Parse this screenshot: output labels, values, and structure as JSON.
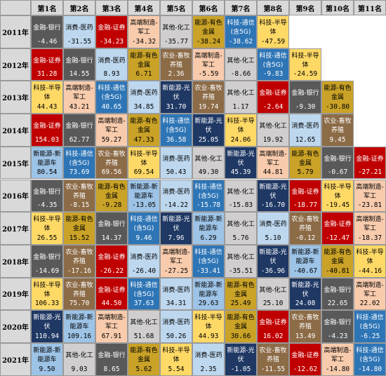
{
  "corner": "",
  "ranks": [
    "第1名",
    "第2名",
    "第3名",
    "第4名",
    "第5名",
    "第6名",
    "第7名",
    "第8名",
    "第9名",
    "第10名",
    "第11名"
  ],
  "sector_colors": {
    "金融-银行": {
      "bg": "#595959",
      "fg": "#ffffff"
    },
    "金融-证券": {
      "bg": "#c00000",
      "fg": "#ffffff"
    },
    "消费-医药": {
      "bg": "#bdd7ee",
      "fg": "#000000"
    },
    "高端制造-军工": {
      "bg": "#f8cbad",
      "fg": "#000000"
    },
    "其他-化工": {
      "bg": "#d0cece",
      "fg": "#000000"
    },
    "能源-有色金属": {
      "bg": "#c9a227",
      "fg": "#000000"
    },
    "科技-通信(含5G)": {
      "bg": "#2e75b6",
      "fg": "#ffffff"
    },
    "科技-半导体": {
      "bg": "#ffd966",
      "fg": "#000000"
    },
    "农业-畜牧养殖": {
      "bg": "#8c6b47",
      "fg": "#ffffff"
    },
    "新能源-光伏": {
      "bg": "#1f3864",
      "fg": "#ffffff"
    },
    "新能源-新能源车": {
      "bg": "#9dc3e6",
      "fg": "#000000"
    }
  },
  "rows": [
    {
      "year": "2011年",
      "cells": [
        {
          "name": "金融-银行",
          "value": "-4.46"
        },
        {
          "name": "消费-医药",
          "value": "-31.55"
        },
        {
          "name": "金融-证券",
          "value": "-34.23"
        },
        {
          "name": "高端制造-\n军工",
          "value": "-34.32"
        },
        {
          "name": "其他-化工",
          "value": "-35.77"
        },
        {
          "name": "能源-有色\n金属",
          "value": "-38.24"
        },
        {
          "name": "科技-通信\n(含5G)",
          "value": "-38.62"
        },
        {
          "name": "科技-半导\n体",
          "value": "-47.59"
        }
      ]
    },
    {
      "year": "2012年",
      "cells": [
        {
          "name": "金融-证券",
          "value": "31.28"
        },
        {
          "name": "金融-银行",
          "value": "14.55"
        },
        {
          "name": "消费-医药",
          "value": "8.93"
        },
        {
          "name": "能源-有色\n金属",
          "value": "6.71"
        },
        {
          "name": "农业-畜牧\n养殖",
          "value": "2.36"
        },
        {
          "name": "高端制造-\n军工",
          "value": "-5.59"
        },
        {
          "name": "其他-化工",
          "value": "-8.66"
        },
        {
          "name": "科技-通信\n(含5G)",
          "value": "-9.83"
        },
        {
          "name": "科技-半导\n体",
          "value": "-24.59"
        }
      ]
    },
    {
      "year": "2013年",
      "cells": [
        {
          "name": "科技-半导\n体",
          "value": "44.43"
        },
        {
          "name": "高端制造-\n军工",
          "value": "43.21"
        },
        {
          "name": "科技-通信\n(含5G)",
          "value": "40.65"
        },
        {
          "name": "消费-医药",
          "value": "34.85"
        },
        {
          "name": "新能源-光\n伏",
          "value": "31.70"
        },
        {
          "name": "农业-畜牧\n养殖",
          "value": "19.74"
        },
        {
          "name": "其他-化工",
          "value": "1.17"
        },
        {
          "name": "金融-证券",
          "value": "-2.64"
        },
        {
          "name": "金融-银行",
          "value": "-9.30"
        },
        {
          "name": "能源-有色\n金属",
          "value": "-30.80"
        }
      ]
    },
    {
      "year": "2014年",
      "cells": [
        {
          "name": "金融-证券",
          "value": "154.03"
        },
        {
          "name": "金融-银行",
          "value": "62.77"
        },
        {
          "name": "高端制造-\n军工",
          "value": "59.27"
        },
        {
          "name": "能源-有色\n金属",
          "value": "47.33"
        },
        {
          "name": "科技-通信\n(含5G)",
          "value": "36.58"
        },
        {
          "name": "新能源-光\n伏",
          "value": "25.05"
        },
        {
          "name": "科技-半导\n体",
          "value": "24.06"
        },
        {
          "name": "其他-化工",
          "value": "19.92"
        },
        {
          "name": "消费-医药",
          "value": "12.65"
        },
        {
          "name": "农业-畜牧\n养殖",
          "value": "9.45"
        }
      ]
    },
    {
      "year": "2015年",
      "cells": [
        {
          "name": "新能源-新\n能源车",
          "value": "80.54"
        },
        {
          "name": "科技-通信\n(含5G)",
          "value": "73.69"
        },
        {
          "name": "农业-畜牧\n养殖",
          "value": "69.56"
        },
        {
          "name": "科技-半导\n体",
          "value": "69.54"
        },
        {
          "name": "消费-医药",
          "value": "50.43"
        },
        {
          "name": "其他-化工",
          "value": "49.30"
        },
        {
          "name": "新能源-光\n伏",
          "value": "45.39"
        },
        {
          "name": "高端制造-\n军工",
          "value": "44.81"
        },
        {
          "name": "能源-有色\n金属",
          "value": "5.79"
        },
        {
          "name": "金融-银行",
          "value": "-0.67"
        },
        {
          "name": "金融-证券",
          "value": "-27.21"
        }
      ]
    },
    {
      "year": "2016年",
      "cells": [
        {
          "name": "金融-银行",
          "value": "-4.35"
        },
        {
          "name": "农业-畜牧\n养殖",
          "value": "-8.15"
        },
        {
          "name": "能源-有色\n金属",
          "value": "-9.28"
        },
        {
          "name": "新能源-新\n能源车",
          "value": "-13.05"
        },
        {
          "name": "消费-医药",
          "value": "-14.22"
        },
        {
          "name": "科技-通信\n(含5G)",
          "value": "-15.78"
        },
        {
          "name": "其他-化工",
          "value": "-15.83"
        },
        {
          "name": "新能源-光\n伏",
          "value": "-16.70"
        },
        {
          "name": "金融-证券",
          "value": "-18.77"
        },
        {
          "name": "科技-半导\n体",
          "value": "-19.45"
        },
        {
          "name": "高端制造-\n军工",
          "value": "-23.81"
        }
      ]
    },
    {
      "year": "2017年",
      "cells": [
        {
          "name": "科技-半导\n体",
          "value": "26.55"
        },
        {
          "name": "能源-有色\n金属",
          "value": "15.52"
        },
        {
          "name": "金融-银行",
          "value": "14.37"
        },
        {
          "name": "科技-通信\n(含5G)",
          "value": "9.46"
        },
        {
          "name": "新能源-光\n伏",
          "value": "7.96"
        },
        {
          "name": "新能源-新\n能源车",
          "value": "6.29"
        },
        {
          "name": "其他-化工",
          "value": "5.76"
        },
        {
          "name": "消费-医药",
          "value": "5.10"
        },
        {
          "name": "农业-畜牧\n养殖",
          "value": "-0.12"
        },
        {
          "name": "金融-证券",
          "value": "-12.47"
        },
        {
          "name": "高端制造-\n军工",
          "value": "-18.37"
        }
      ]
    },
    {
      "year": "2018年",
      "cells": [
        {
          "name": "金融-银行",
          "value": "-14.69"
        },
        {
          "name": "农业-畜牧\n养殖",
          "value": "-17.16"
        },
        {
          "name": "金融-证券",
          "value": "-26.22"
        },
        {
          "name": "消费-医药",
          "value": "-26.40"
        },
        {
          "name": "高端制造-\n军工",
          "value": "-27.25"
        },
        {
          "name": "科技-通信\n(含5G)",
          "value": "-33.41"
        },
        {
          "name": "其他-化工",
          "value": "-35.51"
        },
        {
          "name": "新能源-光\n伏",
          "value": "-36.96"
        },
        {
          "name": "新能源-新\n能源车",
          "value": "-40.67"
        },
        {
          "name": "能源-有色\n金属",
          "value": "-40.81"
        },
        {
          "name": "科技-半导\n体",
          "value": "-44.16"
        }
      ]
    },
    {
      "year": "2019年",
      "cells": [
        {
          "name": "科技-半导\n体",
          "value": "106.33"
        },
        {
          "name": "农业-畜牧\n养殖",
          "value": "75.70"
        },
        {
          "name": "金融-证券",
          "value": "44.50"
        },
        {
          "name": "科技-通信\n(含5G)",
          "value": "37.63"
        },
        {
          "name": "消费-医药",
          "value": "34.31"
        },
        {
          "name": "新能源-新\n能源车",
          "value": "29.63"
        },
        {
          "name": "能源-有色\n金属",
          "value": "25.49"
        },
        {
          "name": "其他-化工",
          "value": "25.10"
        },
        {
          "name": "新能源-光\n伏",
          "value": "24.08"
        },
        {
          "name": "金融-银行",
          "value": "22.65"
        },
        {
          "name": "高端制造-\n军工",
          "value": "22.02"
        }
      ]
    },
    {
      "year": "2020年",
      "cells": [
        {
          "name": "新能源-光\n伏",
          "value": "110.94"
        },
        {
          "name": "新能源-新\n能源车",
          "value": "109.16"
        },
        {
          "name": "高端制造-\n军工",
          "value": "67.91"
        },
        {
          "name": "其他-化工",
          "value": "51.68"
        },
        {
          "name": "消费-医药",
          "value": "50.26"
        },
        {
          "name": "科技-半导\n体",
          "value": "44.93"
        },
        {
          "name": "能源-有色\n金属",
          "value": "30.66"
        },
        {
          "name": "金融-证券",
          "value": "16.02"
        },
        {
          "name": "农业-畜牧\n养殖",
          "value": "13.49"
        },
        {
          "name": "金融-银行",
          "value": "-4.23"
        },
        {
          "name": "科技-通信\n(含5G)",
          "value": "-6.25"
        }
      ]
    },
    {
      "year": "2021年",
      "cells": [
        {
          "name": "新能源-新\n能源车",
          "value": "9.50"
        },
        {
          "name": "其他-化工",
          "value": "9.03"
        },
        {
          "name": "金融-银行",
          "value": "8.65"
        },
        {
          "name": "能源-有色\n金属",
          "value": "5.62"
        },
        {
          "name": "科技-半导\n体",
          "value": "5.54"
        },
        {
          "name": "消费-医药",
          "value": "2.35"
        },
        {
          "name": "新能源-光\n伏",
          "value": "-1.05"
        },
        {
          "name": "农业-畜牧\n养殖",
          "value": "-11.55"
        },
        {
          "name": "金融-证券",
          "value": "-12.62"
        },
        {
          "name": "高端制造-\n军工",
          "value": "-14.80"
        },
        {
          "name": "科技-通信\n(含5G)",
          "value": "-14.80"
        }
      ]
    }
  ]
}
